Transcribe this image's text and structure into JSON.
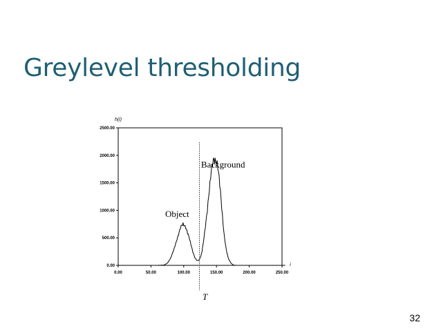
{
  "slide": {
    "title": "Greylevel thresholding",
    "page_number": "32"
  },
  "chart_data": {
    "type": "line",
    "xlabel": "i",
    "ylabel": "h(i)",
    "xlim": [
      0,
      250
    ],
    "ylim": [
      0,
      2500
    ],
    "x_ticks": [
      "0.00",
      "50.00",
      "100.00",
      "150.00",
      "200.00",
      "250.00"
    ],
    "y_ticks": [
      "0.00",
      "500.00",
      "1000.00",
      "1500.00",
      "2000.00",
      "2500.00"
    ],
    "grid": false,
    "legend": "none",
    "series": [
      {
        "x": [
          0,
          60,
          70,
          75,
          80,
          85,
          90,
          93,
          95,
          97,
          99,
          101,
          103,
          105,
          108,
          111,
          114,
          117,
          120,
          123,
          126,
          128,
          130,
          133,
          136,
          138,
          140,
          142,
          144,
          146,
          148,
          150,
          152,
          154,
          156,
          158,
          160,
          162,
          165,
          168,
          172,
          176,
          180,
          255
        ],
        "y": [
          0,
          0,
          5,
          40,
          130,
          290,
          480,
          600,
          690,
          730,
          750,
          720,
          690,
          620,
          520,
          380,
          240,
          140,
          90,
          90,
          160,
          260,
          420,
          700,
          1000,
          1250,
          1480,
          1720,
          1860,
          1930,
          1890,
          1880,
          1800,
          1600,
          1350,
          1050,
          760,
          520,
          280,
          130,
          40,
          5,
          0,
          0
        ]
      }
    ],
    "threshold": {
      "label": "T",
      "x": 124
    },
    "annotations": [
      {
        "text": "Object",
        "x": 90,
        "y": 880
      },
      {
        "text": "Background",
        "x": 160,
        "y": 1780
      }
    ]
  }
}
